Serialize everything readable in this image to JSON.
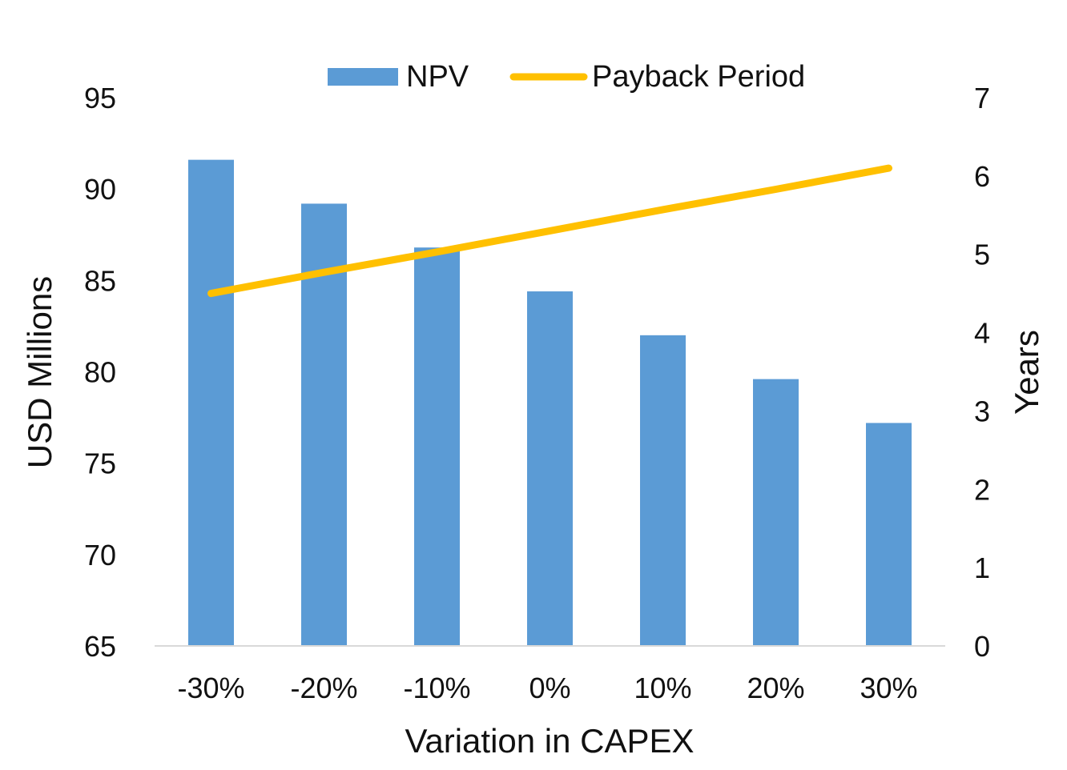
{
  "chart_data": {
    "type": "bar",
    "categories": [
      "-30%",
      "-20%",
      "-10%",
      "0%",
      "10%",
      "20%",
      "30%"
    ],
    "series": [
      {
        "name": "NPV",
        "type": "bar",
        "axis": "left",
        "color": "#5B9BD5",
        "values": [
          91.6,
          89.2,
          86.8,
          84.4,
          82.0,
          79.6,
          77.2
        ]
      },
      {
        "name": "Payback Period",
        "type": "line",
        "axis": "right",
        "color": "#FFC000",
        "values": [
          4.5,
          4.77,
          5.03,
          5.3,
          5.57,
          5.83,
          6.1
        ]
      }
    ],
    "xlabel": "Variation in CAPEX",
    "ylabel": "USD Millions",
    "y2label": "Years",
    "ylim": [
      65,
      95
    ],
    "yticks": [
      "65",
      "70",
      "75",
      "80",
      "85",
      "90",
      "95"
    ],
    "y2lim": [
      0,
      7
    ],
    "y2ticks": [
      "0",
      "1",
      "2",
      "3",
      "4",
      "5",
      "6",
      "7"
    ],
    "grid": false,
    "legend_position": "top"
  }
}
